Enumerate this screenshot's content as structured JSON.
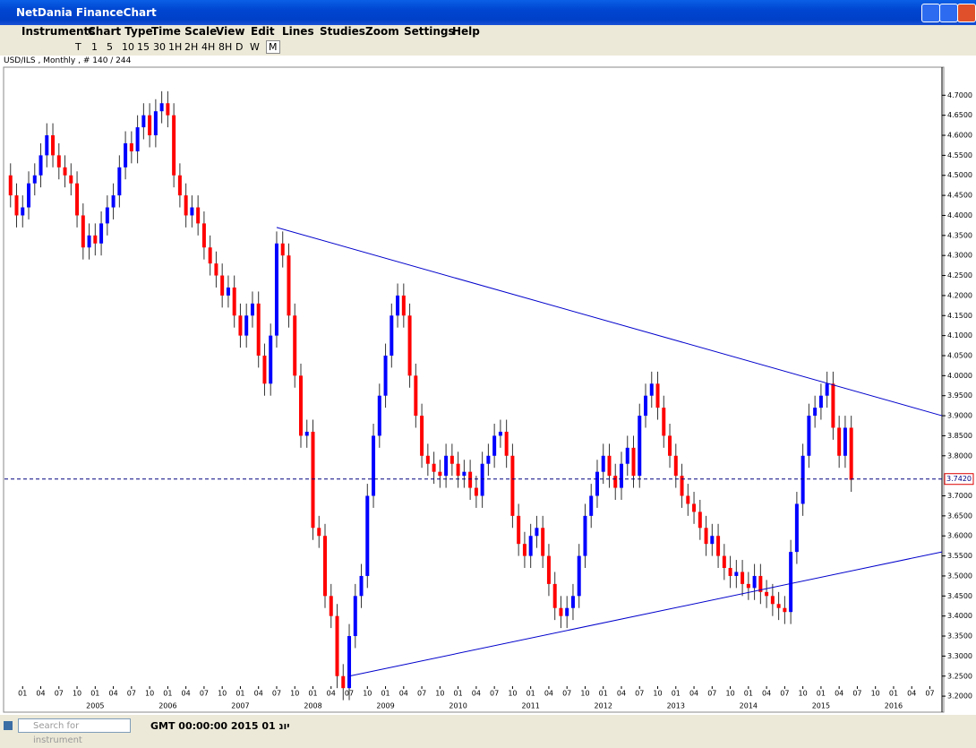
{
  "window": {
    "title": "NetDania FinanceChart"
  },
  "menu": [
    "Instruments",
    "Chart Type",
    "Time Scale",
    "View",
    "Edit",
    "Lines",
    "Studies",
    "Zoom",
    "Settings",
    "Help"
  ],
  "toolbar": [
    "T",
    "1",
    "5",
    "10",
    "15",
    "30",
    "1H",
    "2H",
    "4H",
    "8H",
    "D",
    "W",
    "M"
  ],
  "chart_header": "USD/ILS , Monthly , # 140 / 244",
  "status": {
    "search_placeholder": "Search for instrument",
    "time": "GMT 00:00:00 2015 יונ 01"
  },
  "chart_data": {
    "type": "candlestick",
    "up_color": "#0000ff",
    "down_color": "#ff0000",
    "x": [
      "2003-11",
      "2003-12",
      "2004-01",
      "2004-02",
      "2004-03",
      "2004-04",
      "2004-05",
      "2004-06",
      "2004-07",
      "2004-08",
      "2004-09",
      "2004-10",
      "2004-11",
      "2004-12",
      "2005-01",
      "2005-02",
      "2005-03",
      "2005-04",
      "2005-05",
      "2005-06",
      "2005-07",
      "2005-08",
      "2005-09",
      "2005-10",
      "2005-11",
      "2005-12",
      "2006-01",
      "2006-02",
      "2006-03",
      "2006-04",
      "2006-05",
      "2006-06",
      "2006-07",
      "2006-08",
      "2006-09",
      "2006-10",
      "2006-11",
      "2006-12",
      "2007-01",
      "2007-02",
      "2007-03",
      "2007-04",
      "2007-05",
      "2007-06",
      "2007-07",
      "2007-08",
      "2007-09",
      "2007-10",
      "2007-11",
      "2007-12",
      "2008-01",
      "2008-02",
      "2008-03",
      "2008-04",
      "2008-05",
      "2008-06",
      "2008-07",
      "2008-08",
      "2008-09",
      "2008-10",
      "2008-11",
      "2008-12",
      "2009-01",
      "2009-02",
      "2009-03",
      "2009-04",
      "2009-05",
      "2009-06",
      "2009-07",
      "2009-08",
      "2009-09",
      "2009-10",
      "2009-11",
      "2009-12",
      "2010-01",
      "2010-02",
      "2010-03",
      "2010-04",
      "2010-05",
      "2010-06",
      "2010-07",
      "2010-08",
      "2010-09",
      "2010-10",
      "2010-11",
      "2010-12",
      "2011-01",
      "2011-02",
      "2011-03",
      "2011-04",
      "2011-05",
      "2011-06",
      "2011-07",
      "2011-08",
      "2011-09",
      "2011-10",
      "2011-11",
      "2011-12",
      "2012-01",
      "2012-02",
      "2012-03",
      "2012-04",
      "2012-05",
      "2012-06",
      "2012-07",
      "2012-08",
      "2012-09",
      "2012-10",
      "2012-11",
      "2012-12",
      "2013-01",
      "2013-02",
      "2013-03",
      "2013-04",
      "2013-05",
      "2013-06",
      "2013-07",
      "2013-08",
      "2013-09",
      "2013-10",
      "2013-11",
      "2013-12",
      "2014-01",
      "2014-02",
      "2014-03",
      "2014-04",
      "2014-05",
      "2014-06",
      "2014-07",
      "2014-08",
      "2014-09",
      "2014-10",
      "2014-11",
      "2014-12",
      "2015-01",
      "2015-02",
      "2015-03",
      "2015-04",
      "2015-05",
      "2015-06"
    ],
    "open": [
      4.5,
      4.45,
      4.4,
      4.42,
      4.48,
      4.5,
      4.55,
      4.6,
      4.55,
      4.52,
      4.5,
      4.48,
      4.4,
      4.32,
      4.35,
      4.33,
      4.38,
      4.42,
      4.45,
      4.52,
      4.58,
      4.56,
      4.62,
      4.65,
      4.6,
      4.66,
      4.68,
      4.65,
      4.5,
      4.45,
      4.4,
      4.42,
      4.38,
      4.32,
      4.28,
      4.25,
      4.2,
      4.22,
      4.15,
      4.1,
      4.15,
      4.18,
      4.05,
      3.98,
      4.1,
      4.33,
      4.3,
      4.15,
      4.0,
      3.85,
      3.86,
      3.62,
      3.6,
      3.45,
      3.4,
      3.25,
      3.22,
      3.35,
      3.45,
      3.5,
      3.7,
      3.85,
      3.95,
      4.05,
      4.15,
      4.2,
      4.15,
      4.0,
      3.9,
      3.8,
      3.78,
      3.76,
      3.75,
      3.8,
      3.78,
      3.75,
      3.76,
      3.72,
      3.7,
      3.78,
      3.8,
      3.85,
      3.86,
      3.8,
      3.65,
      3.58,
      3.55,
      3.6,
      3.62,
      3.55,
      3.48,
      3.42,
      3.4,
      3.42,
      3.45,
      3.55,
      3.65,
      3.7,
      3.76,
      3.8,
      3.75,
      3.72,
      3.78,
      3.82,
      3.75,
      3.9,
      3.95,
      3.98,
      3.92,
      3.85,
      3.8,
      3.75,
      3.7,
      3.68,
      3.66,
      3.62,
      3.58,
      3.6,
      3.55,
      3.52,
      3.5,
      3.51,
      3.48,
      3.47,
      3.5,
      3.46,
      3.45,
      3.43,
      3.42,
      3.41,
      3.56,
      3.68,
      3.8,
      3.9,
      3.92,
      3.95,
      3.98,
      3.87,
      3.8,
      3.87
    ],
    "high": [
      4.53,
      4.48,
      4.45,
      4.51,
      4.53,
      4.58,
      4.63,
      4.63,
      4.58,
      4.55,
      4.53,
      4.51,
      4.43,
      4.38,
      4.38,
      4.41,
      4.45,
      4.48,
      4.55,
      4.61,
      4.61,
      4.65,
      4.68,
      4.68,
      4.69,
      4.71,
      4.71,
      4.68,
      4.53,
      4.48,
      4.45,
      4.45,
      4.41,
      4.35,
      4.31,
      4.28,
      4.25,
      4.25,
      4.18,
      4.18,
      4.21,
      4.21,
      4.08,
      4.13,
      4.36,
      4.36,
      4.33,
      4.18,
      4.03,
      3.89,
      3.89,
      3.65,
      3.63,
      3.48,
      3.43,
      3.28,
      3.38,
      3.48,
      3.53,
      3.73,
      3.88,
      3.98,
      4.08,
      4.18,
      4.23,
      4.23,
      4.18,
      4.03,
      3.93,
      3.83,
      3.81,
      3.79,
      3.83,
      3.83,
      3.81,
      3.79,
      3.79,
      3.75,
      3.81,
      3.83,
      3.88,
      3.89,
      3.89,
      3.83,
      3.68,
      3.61,
      3.63,
      3.65,
      3.65,
      3.58,
      3.51,
      3.45,
      3.45,
      3.48,
      3.58,
      3.68,
      3.73,
      3.79,
      3.83,
      3.83,
      3.78,
      3.81,
      3.85,
      3.85,
      3.93,
      3.98,
      4.01,
      4.01,
      3.95,
      3.88,
      3.83,
      3.78,
      3.73,
      3.71,
      3.69,
      3.65,
      3.63,
      3.63,
      3.58,
      3.55,
      3.54,
      3.54,
      3.51,
      3.53,
      3.53,
      3.49,
      3.48,
      3.46,
      3.45,
      3.59,
      3.71,
      3.83,
      3.93,
      3.95,
      3.98,
      4.01,
      4.01,
      3.9,
      3.9,
      3.9
    ],
    "low": [
      4.42,
      4.37,
      4.37,
      4.39,
      4.45,
      4.47,
      4.52,
      4.52,
      4.49,
      4.47,
      4.45,
      4.37,
      4.29,
      4.29,
      4.3,
      4.3,
      4.35,
      4.39,
      4.42,
      4.49,
      4.53,
      4.53,
      4.59,
      4.57,
      4.57,
      4.63,
      4.62,
      4.47,
      4.42,
      4.37,
      4.37,
      4.35,
      4.29,
      4.25,
      4.22,
      4.17,
      4.17,
      4.12,
      4.07,
      4.07,
      4.12,
      4.02,
      3.95,
      3.95,
      4.07,
      4.27,
      4.12,
      3.97,
      3.82,
      3.82,
      3.59,
      3.57,
      3.42,
      3.37,
      3.22,
      3.19,
      3.19,
      3.32,
      3.42,
      3.47,
      3.67,
      3.82,
      3.92,
      4.02,
      4.12,
      4.12,
      3.97,
      3.87,
      3.77,
      3.75,
      3.73,
      3.72,
      3.72,
      3.75,
      3.72,
      3.72,
      3.69,
      3.67,
      3.67,
      3.75,
      3.77,
      3.82,
      3.77,
      3.62,
      3.55,
      3.52,
      3.52,
      3.57,
      3.52,
      3.45,
      3.39,
      3.37,
      3.37,
      3.39,
      3.42,
      3.52,
      3.62,
      3.67,
      3.73,
      3.72,
      3.69,
      3.69,
      3.75,
      3.72,
      3.72,
      3.87,
      3.92,
      3.89,
      3.82,
      3.77,
      3.72,
      3.67,
      3.65,
      3.63,
      3.59,
      3.55,
      3.55,
      3.52,
      3.49,
      3.47,
      3.47,
      3.45,
      3.44,
      3.44,
      3.43,
      3.42,
      3.4,
      3.39,
      3.38,
      3.38,
      3.53,
      3.65,
      3.77,
      3.87,
      3.89,
      3.92,
      3.84,
      3.77,
      3.77,
      3.71
    ],
    "close": [
      4.45,
      4.4,
      4.42,
      4.48,
      4.5,
      4.55,
      4.6,
      4.55,
      4.52,
      4.5,
      4.48,
      4.4,
      4.32,
      4.35,
      4.33,
      4.38,
      4.42,
      4.45,
      4.52,
      4.58,
      4.56,
      4.62,
      4.65,
      4.6,
      4.66,
      4.68,
      4.65,
      4.5,
      4.45,
      4.4,
      4.42,
      4.38,
      4.32,
      4.28,
      4.25,
      4.2,
      4.22,
      4.15,
      4.1,
      4.15,
      4.18,
      4.05,
      3.98,
      4.1,
      4.33,
      4.3,
      4.15,
      4.0,
      3.85,
      3.86,
      3.62,
      3.6,
      3.45,
      3.4,
      3.25,
      3.22,
      3.35,
      3.45,
      3.5,
      3.7,
      3.85,
      3.95,
      4.05,
      4.15,
      4.2,
      4.15,
      4.0,
      3.9,
      3.8,
      3.78,
      3.76,
      3.75,
      3.8,
      3.78,
      3.75,
      3.76,
      3.72,
      3.7,
      3.78,
      3.8,
      3.85,
      3.86,
      3.8,
      3.65,
      3.58,
      3.55,
      3.6,
      3.62,
      3.55,
      3.48,
      3.42,
      3.4,
      3.42,
      3.45,
      3.55,
      3.65,
      3.7,
      3.76,
      3.8,
      3.75,
      3.72,
      3.78,
      3.82,
      3.75,
      3.9,
      3.95,
      3.98,
      3.92,
      3.85,
      3.8,
      3.75,
      3.7,
      3.68,
      3.66,
      3.62,
      3.58,
      3.6,
      3.55,
      3.52,
      3.5,
      3.51,
      3.48,
      3.47,
      3.5,
      3.46,
      3.45,
      3.43,
      3.42,
      3.41,
      3.56,
      3.68,
      3.8,
      3.9,
      3.92,
      3.95,
      3.98,
      3.87,
      3.8,
      3.87,
      3.74
    ],
    "xlim": [
      "2003-10",
      "2016-09"
    ],
    "xticks": [
      {
        "value": "2004-01",
        "label": "01"
      },
      {
        "value": "2004-04",
        "label": "04"
      },
      {
        "value": "2004-07",
        "label": "07"
      },
      {
        "value": "2004-10",
        "label": "10"
      },
      {
        "value": "2005-01",
        "label": "01"
      },
      {
        "value": "2005-04",
        "label": "04"
      },
      {
        "value": "2005-07",
        "label": "07"
      },
      {
        "value": "2005-10",
        "label": "10"
      },
      {
        "value": "2006-01",
        "label": "01"
      },
      {
        "value": "2006-04",
        "label": "04"
      },
      {
        "value": "2006-07",
        "label": "07"
      },
      {
        "value": "2006-10",
        "label": "10"
      },
      {
        "value": "2007-01",
        "label": "01"
      },
      {
        "value": "2007-04",
        "label": "04"
      },
      {
        "value": "2007-07",
        "label": "07"
      },
      {
        "value": "2007-10",
        "label": "10"
      },
      {
        "value": "2008-01",
        "label": "01"
      },
      {
        "value": "2008-04",
        "label": "04"
      },
      {
        "value": "2008-07",
        "label": "07"
      },
      {
        "value": "2008-10",
        "label": "10"
      },
      {
        "value": "2009-01",
        "label": "01"
      },
      {
        "value": "2009-04",
        "label": "04"
      },
      {
        "value": "2009-07",
        "label": "07"
      },
      {
        "value": "2009-10",
        "label": "10"
      },
      {
        "value": "2010-01",
        "label": "01"
      },
      {
        "value": "2010-04",
        "label": "04"
      },
      {
        "value": "2010-07",
        "label": "07"
      },
      {
        "value": "2010-10",
        "label": "10"
      },
      {
        "value": "2011-01",
        "label": "01"
      },
      {
        "value": "2011-04",
        "label": "04"
      },
      {
        "value": "2011-07",
        "label": "07"
      },
      {
        "value": "2011-10",
        "label": "10"
      },
      {
        "value": "2012-01",
        "label": "01"
      },
      {
        "value": "2012-04",
        "label": "04"
      },
      {
        "value": "2012-07",
        "label": "07"
      },
      {
        "value": "2012-10",
        "label": "10"
      },
      {
        "value": "2013-01",
        "label": "01"
      },
      {
        "value": "2013-04",
        "label": "04"
      },
      {
        "value": "2013-07",
        "label": "07"
      },
      {
        "value": "2013-10",
        "label": "10"
      },
      {
        "value": "2014-01",
        "label": "01"
      },
      {
        "value": "2014-04",
        "label": "04"
      },
      {
        "value": "2014-07",
        "label": "07"
      },
      {
        "value": "2014-10",
        "label": "10"
      },
      {
        "value": "2015-01",
        "label": "01"
      },
      {
        "value": "2015-04",
        "label": "04"
      },
      {
        "value": "2015-07",
        "label": "07"
      },
      {
        "value": "2015-10",
        "label": "10"
      },
      {
        "value": "2016-01",
        "label": "01"
      },
      {
        "value": "2016-04",
        "label": "04"
      },
      {
        "value": "2016-07",
        "label": "07"
      }
    ],
    "year_ticks": [
      {
        "value": "2005-01",
        "label": "2005"
      },
      {
        "value": "2006-01",
        "label": "2006"
      },
      {
        "value": "2007-01",
        "label": "2007"
      },
      {
        "value": "2008-01",
        "label": "2008"
      },
      {
        "value": "2009-01",
        "label": "2009"
      },
      {
        "value": "2010-01",
        "label": "2010"
      },
      {
        "value": "2011-01",
        "label": "2011"
      },
      {
        "value": "2012-01",
        "label": "2012"
      },
      {
        "value": "2013-01",
        "label": "2013"
      },
      {
        "value": "2014-01",
        "label": "2014"
      },
      {
        "value": "2015-01",
        "label": "2015"
      },
      {
        "value": "2016-01",
        "label": "2016"
      }
    ],
    "ylim": [
      3.16,
      4.77
    ],
    "yticks": [
      {
        "value": 3.2,
        "label": "3.2000"
      },
      {
        "value": 3.25,
        "label": "3.2500"
      },
      {
        "value": 3.3,
        "label": "3.3000"
      },
      {
        "value": 3.35,
        "label": "3.3500"
      },
      {
        "value": 3.4,
        "label": "3.4000"
      },
      {
        "value": 3.45,
        "label": "3.4500"
      },
      {
        "value": 3.5,
        "label": "3.5000"
      },
      {
        "value": 3.55,
        "label": "3.5500"
      },
      {
        "value": 3.6,
        "label": "3.6000"
      },
      {
        "value": 3.65,
        "label": "3.6500"
      },
      {
        "value": 3.7,
        "label": "3.7000"
      },
      {
        "value": 3.8,
        "label": "3.8000"
      },
      {
        "value": 3.85,
        "label": "3.8500"
      },
      {
        "value": 3.9,
        "label": "3.9000"
      },
      {
        "value": 3.95,
        "label": "3.9500"
      },
      {
        "value": 4.0,
        "label": "4.0000"
      },
      {
        "value": 4.05,
        "label": "4.0500"
      },
      {
        "value": 4.1,
        "label": "4.1000"
      },
      {
        "value": 4.15,
        "label": "4.1500"
      },
      {
        "value": 4.2,
        "label": "4.2000"
      },
      {
        "value": 4.25,
        "label": "4.2500"
      },
      {
        "value": 4.3,
        "label": "4.3000"
      },
      {
        "value": 4.35,
        "label": "4.3500"
      },
      {
        "value": 4.4,
        "label": "4.4000"
      },
      {
        "value": 4.45,
        "label": "4.4500"
      },
      {
        "value": 4.5,
        "label": "4.5000"
      },
      {
        "value": 4.55,
        "label": "4.5500"
      },
      {
        "value": 4.6,
        "label": "4.6000"
      },
      {
        "value": 4.65,
        "label": "4.6500"
      },
      {
        "value": 4.7,
        "label": "4.7000"
      }
    ],
    "last_price": {
      "value": 3.742,
      "label": "3.7420",
      "color": "#000080"
    },
    "trendlines": [
      {
        "color": "#0000cc",
        "x": [
          "2007-07",
          "2016-09"
        ],
        "y": [
          4.37,
          3.9
        ]
      },
      {
        "color": "#0000cc",
        "x": [
          "2008-07",
          "2016-09"
        ],
        "y": [
          3.25,
          3.56
        ]
      }
    ]
  }
}
